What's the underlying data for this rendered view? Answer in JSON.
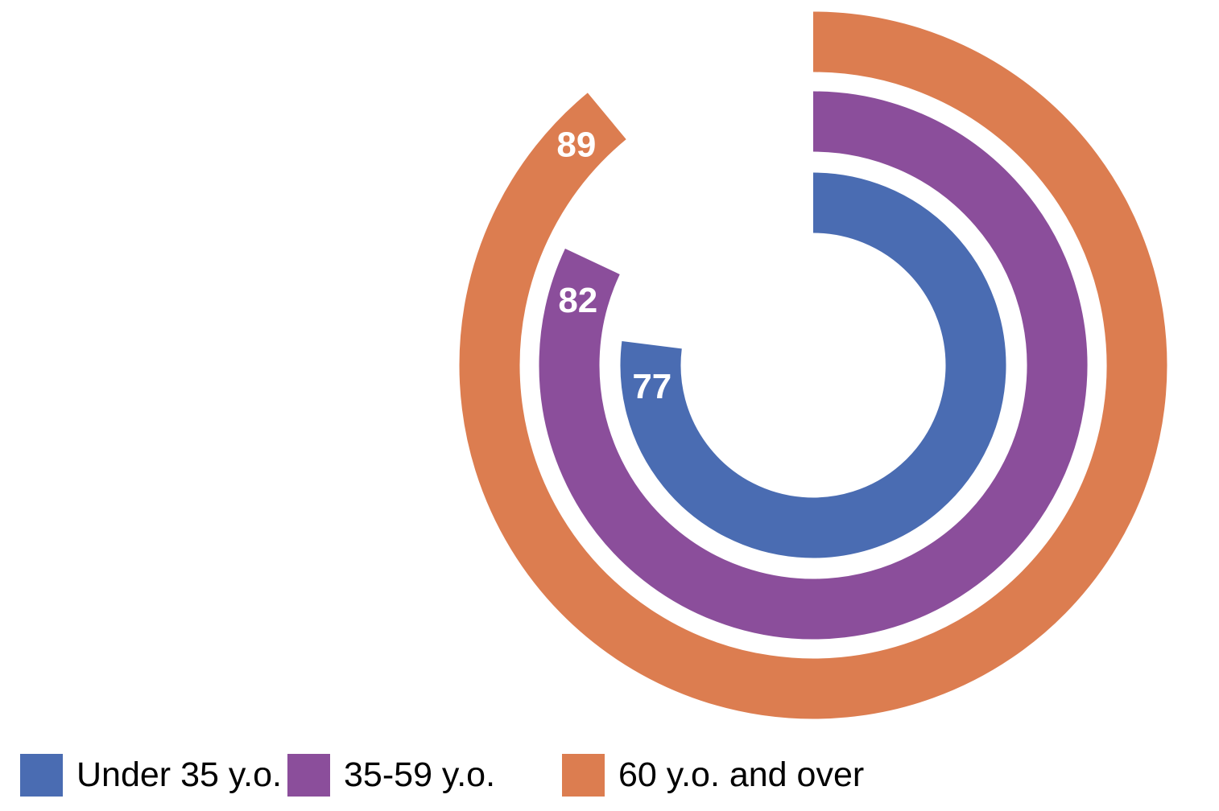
{
  "chart_data": {
    "type": "radial_bar",
    "title": "",
    "categories": [
      "Under 35 y.o.",
      "35-59 y.o.",
      "60 y.o. and over"
    ],
    "values": [
      77,
      82,
      89
    ],
    "max": 100,
    "colors": [
      "#4A6CB2",
      "#8B4E9B",
      "#DC7D50"
    ],
    "ring_order": "inner_to_outer",
    "start_angle": "12-oclock",
    "direction": "clockwise",
    "value_label_color": "#FFFFFF",
    "background_color": "#FFFFFF",
    "legend_position": "bottom",
    "legend_text_color": "#000000"
  }
}
